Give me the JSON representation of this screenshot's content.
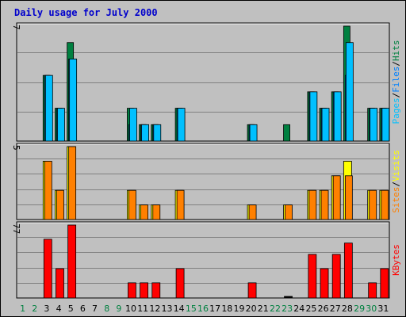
{
  "title": "Daily usage for July 2000",
  "colors": {
    "background": "#c0c0c0",
    "hits": "#008040",
    "files": "#0080ff",
    "pages": "#00c0ff",
    "visits": "#ffff00",
    "sites": "#ff8000",
    "kbytes": "#ff0000",
    "title": "#0000cc",
    "weekday": "#000000",
    "weekend": "#008040"
  },
  "chart_data": [
    {
      "type": "bar",
      "panel": "top",
      "ymax_label": "7",
      "ylim": [
        0,
        7
      ],
      "legend": [
        "Pages",
        "/",
        "Files",
        "/",
        "Hits"
      ],
      "x": [
        1,
        2,
        3,
        4,
        5,
        6,
        7,
        8,
        9,
        10,
        11,
        12,
        13,
        14,
        15,
        16,
        17,
        18,
        19,
        20,
        21,
        22,
        23,
        24,
        25,
        26,
        27,
        28,
        29,
        30,
        31
      ],
      "series": [
        {
          "name": "Hits",
          "values": [
            0,
            0,
            4,
            2,
            6,
            0,
            0,
            0,
            0,
            2,
            1,
            1,
            0,
            2,
            0,
            0,
            0,
            0,
            0,
            1,
            0,
            0,
            1,
            0,
            3,
            2,
            3,
            7,
            0,
            2,
            2
          ]
        },
        {
          "name": "Files",
          "values": [
            0,
            0,
            4,
            2,
            5,
            0,
            0,
            0,
            0,
            1,
            1,
            1,
            0,
            2,
            0,
            0,
            0,
            0,
            0,
            1,
            0,
            0,
            0,
            0,
            3,
            2,
            3,
            4,
            0,
            2,
            2
          ]
        },
        {
          "name": "Pages",
          "values": [
            0,
            0,
            4,
            2,
            5,
            0,
            0,
            0,
            0,
            2,
            1,
            1,
            0,
            2,
            0,
            0,
            0,
            0,
            0,
            1,
            0,
            0,
            0,
            0,
            3,
            2,
            3,
            6,
            0,
            2,
            2
          ]
        }
      ]
    },
    {
      "type": "bar",
      "panel": "middle",
      "ymax_label": "5",
      "ylim": [
        0,
        5
      ],
      "legend": [
        "Sites",
        "/",
        "Visits"
      ],
      "x": [
        1,
        2,
        3,
        4,
        5,
        6,
        7,
        8,
        9,
        10,
        11,
        12,
        13,
        14,
        15,
        16,
        17,
        18,
        19,
        20,
        21,
        22,
        23,
        24,
        25,
        26,
        27,
        28,
        29,
        30,
        31
      ],
      "series": [
        {
          "name": "Visits",
          "values": [
            0,
            0,
            4,
            2,
            5,
            0,
            0,
            0,
            0,
            2,
            1,
            1,
            0,
            2,
            0,
            0,
            0,
            0,
            0,
            1,
            0,
            0,
            1,
            0,
            2,
            2,
            3,
            4,
            0,
            2,
            2
          ]
        },
        {
          "name": "Sites",
          "values": [
            0,
            0,
            4,
            2,
            5,
            0,
            0,
            0,
            0,
            2,
            1,
            1,
            0,
            2,
            0,
            0,
            0,
            0,
            0,
            1,
            0,
            0,
            1,
            0,
            2,
            2,
            3,
            3,
            0,
            2,
            2
          ]
        }
      ]
    },
    {
      "type": "bar",
      "panel": "bottom",
      "ymax_label": "77",
      "ylim": [
        0,
        77
      ],
      "legend": [
        "KBytes"
      ],
      "x": [
        1,
        2,
        3,
        4,
        5,
        6,
        7,
        8,
        9,
        10,
        11,
        12,
        13,
        14,
        15,
        16,
        17,
        18,
        19,
        20,
        21,
        22,
        23,
        24,
        25,
        26,
        27,
        28,
        29,
        30,
        31
      ],
      "series": [
        {
          "name": "KBytes",
          "values": [
            0,
            0,
            62,
            31,
            77,
            0,
            0,
            0,
            0,
            16,
            16,
            16,
            0,
            31,
            0,
            0,
            0,
            0,
            0,
            16,
            0,
            0,
            1,
            0,
            46,
            31,
            46,
            58,
            0,
            16,
            31
          ]
        }
      ]
    }
  ],
  "x_labels": [
    "1",
    "2",
    "3",
    "4",
    "5",
    "6",
    "7",
    "8",
    "9",
    "10",
    "11",
    "12",
    "13",
    "14",
    "15",
    "16",
    "17",
    "18",
    "19",
    "20",
    "21",
    "22",
    "23",
    "24",
    "25",
    "26",
    "27",
    "28",
    "29",
    "30",
    "31"
  ],
  "weekend_days": [
    1,
    2,
    8,
    9,
    15,
    16,
    22,
    23,
    29,
    30
  ]
}
